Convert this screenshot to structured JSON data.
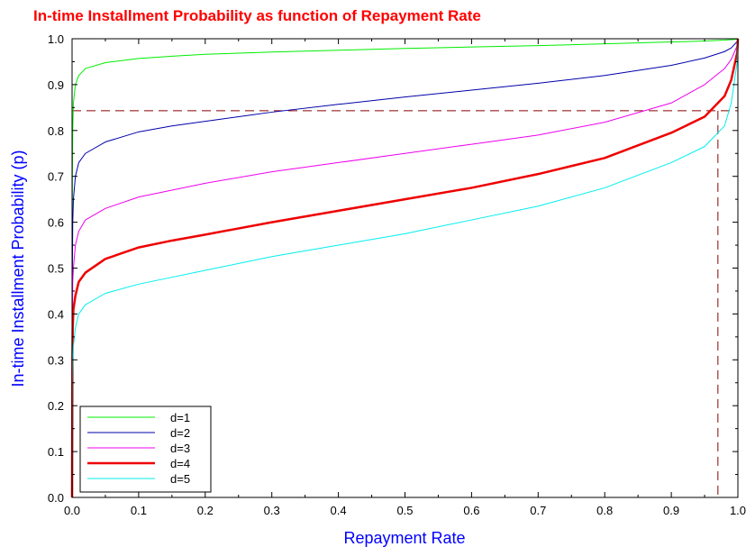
{
  "chart_data": {
    "type": "line",
    "title": "In-time Installment Probability as function of Repayment Rate",
    "xlabel": "Repayment Rate",
    "ylabel": "In-time Installment Probability (p)",
    "xlim": [
      0,
      1
    ],
    "ylim": [
      0,
      1
    ],
    "xticks": [
      "0.0",
      "0.1",
      "0.2",
      "0.3",
      "0.4",
      "0.5",
      "0.6",
      "0.7",
      "0.8",
      "0.9",
      "1.0"
    ],
    "yticks": [
      "0.0",
      "0.1",
      "0.2",
      "0.3",
      "0.4",
      "0.5",
      "0.6",
      "0.7",
      "0.8",
      "0.9",
      "1.0"
    ],
    "grid": false,
    "legend_position": "bottom-left",
    "colors": {
      "title": "#ff0000",
      "axis_label": "#0000ff",
      "reference_line": "#8b0000"
    },
    "series": [
      {
        "name": "d=1",
        "color": "#00ee00",
        "width": 1,
        "x": [
          0,
          0.0005,
          0.001,
          0.002,
          0.005,
          0.01,
          0.02,
          0.05,
          0.1,
          0.15,
          0.2,
          0.3,
          0.4,
          0.5,
          0.6,
          0.7,
          0.8,
          0.9,
          0.95,
          0.98,
          0.99,
          0.999,
          1
        ],
        "y": [
          0,
          0.7,
          0.8,
          0.86,
          0.9,
          0.92,
          0.935,
          0.948,
          0.957,
          0.962,
          0.966,
          0.971,
          0.975,
          0.979,
          0.982,
          0.985,
          0.989,
          0.993,
          0.995,
          0.997,
          0.998,
          0.999,
          1
        ]
      },
      {
        "name": "d=2",
        "color": "#0000aa",
        "width": 1,
        "x": [
          0,
          0.0005,
          0.001,
          0.002,
          0.005,
          0.01,
          0.02,
          0.05,
          0.1,
          0.15,
          0.2,
          0.3,
          0.4,
          0.5,
          0.6,
          0.7,
          0.8,
          0.9,
          0.95,
          0.98,
          0.99,
          0.999,
          1
        ],
        "y": [
          0,
          0.5,
          0.6,
          0.65,
          0.7,
          0.73,
          0.75,
          0.775,
          0.797,
          0.81,
          0.82,
          0.84,
          0.857,
          0.873,
          0.888,
          0.903,
          0.92,
          0.942,
          0.958,
          0.972,
          0.98,
          0.994,
          1
        ]
      },
      {
        "name": "d=3",
        "color": "#ee00ee",
        "width": 1,
        "x": [
          0,
          0.0005,
          0.001,
          0.002,
          0.005,
          0.01,
          0.02,
          0.05,
          0.1,
          0.15,
          0.2,
          0.3,
          0.4,
          0.5,
          0.6,
          0.7,
          0.8,
          0.9,
          0.95,
          0.98,
          0.99,
          0.999,
          1
        ],
        "y": [
          0,
          0.4,
          0.47,
          0.5,
          0.55,
          0.58,
          0.605,
          0.63,
          0.655,
          0.67,
          0.685,
          0.71,
          0.73,
          0.75,
          0.77,
          0.79,
          0.818,
          0.86,
          0.9,
          0.935,
          0.955,
          0.985,
          1
        ]
      },
      {
        "name": "d=4",
        "color": "#ee0000",
        "width": 2.5,
        "x": [
          0,
          0.0005,
          0.001,
          0.002,
          0.005,
          0.01,
          0.02,
          0.05,
          0.1,
          0.15,
          0.2,
          0.3,
          0.4,
          0.5,
          0.6,
          0.7,
          0.8,
          0.9,
          0.95,
          0.98,
          0.99,
          0.999,
          1
        ],
        "y": [
          0,
          0.3,
          0.37,
          0.41,
          0.44,
          0.47,
          0.49,
          0.52,
          0.545,
          0.56,
          0.573,
          0.6,
          0.625,
          0.65,
          0.675,
          0.705,
          0.74,
          0.795,
          0.83,
          0.875,
          0.91,
          0.97,
          1
        ]
      },
      {
        "name": "d=5",
        "color": "#00eeee",
        "width": 1,
        "x": [
          0,
          0.0005,
          0.001,
          0.002,
          0.005,
          0.01,
          0.02,
          0.05,
          0.1,
          0.15,
          0.2,
          0.3,
          0.4,
          0.5,
          0.6,
          0.7,
          0.8,
          0.9,
          0.95,
          0.98,
          0.99,
          0.999,
          1
        ],
        "y": [
          0,
          0.25,
          0.3,
          0.33,
          0.37,
          0.4,
          0.42,
          0.445,
          0.465,
          0.48,
          0.495,
          0.525,
          0.55,
          0.575,
          0.605,
          0.635,
          0.675,
          0.73,
          0.765,
          0.81,
          0.86,
          0.95,
          1
        ]
      }
    ],
    "reference_lines": {
      "y": 0.843,
      "x": 0.97
    }
  }
}
